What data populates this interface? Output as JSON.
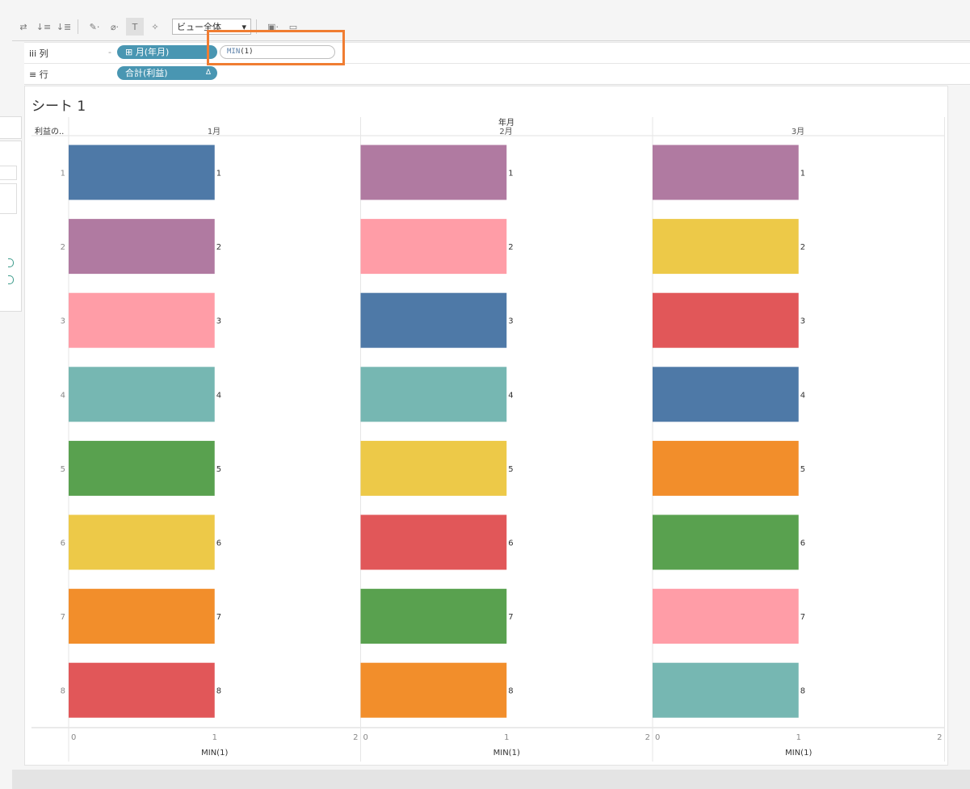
{
  "toolbar": {
    "view_dropdown": "ビュー全体",
    "icons": [
      "swap-icon",
      "sort-asc-icon",
      "sort-desc-icon",
      "highlight-pen-icon",
      "clip-icon",
      "text-label-icon",
      "pin-icon",
      "fit-icon",
      "tooltip-icon"
    ]
  },
  "shelves": {
    "columns": {
      "label": "iii 列",
      "pill": "⊞ 月(年月)",
      "pill2_func": "MIN",
      "pill2_arg": "(1)"
    },
    "rows": {
      "label": "≡ 行",
      "pill": "合計(利益)",
      "pill_delta": "Δ"
    }
  },
  "sheet": {
    "title": "シート 1"
  },
  "chart_data": {
    "type": "bar",
    "orientation": "horizontal",
    "column_header": "年月",
    "row_header": "利益の..",
    "panels": [
      "1月",
      "2月",
      "3月"
    ],
    "rows": [
      "1",
      "2",
      "3",
      "4",
      "5",
      "6",
      "7",
      "8"
    ],
    "xlabel": "MIN(1)",
    "xlim": [
      0,
      2
    ],
    "xticks": [
      "0",
      "1",
      "2"
    ],
    "values": [
      [
        1,
        1,
        1,
        1,
        1,
        1,
        1,
        1
      ],
      [
        1,
        1,
        1,
        1,
        1,
        1,
        1,
        1
      ],
      [
        1,
        1,
        1,
        1,
        1,
        1,
        1,
        1
      ]
    ],
    "data_labels": [
      [
        "1",
        "2",
        "3",
        "4",
        "5",
        "6",
        "7",
        "8"
      ],
      [
        "1",
        "2",
        "3",
        "4",
        "5",
        "6",
        "7",
        "8"
      ],
      [
        "1",
        "2",
        "3",
        "4",
        "5",
        "6",
        "7",
        "8"
      ]
    ],
    "colors": [
      [
        "#4e79a7",
        "#b07aa1",
        "#ff9da7",
        "#76b7b2",
        "#59a14f",
        "#edc948",
        "#f28e2b",
        "#e15759"
      ],
      [
        "#b07aa1",
        "#ff9da7",
        "#4e79a7",
        "#76b7b2",
        "#edc948",
        "#e15759",
        "#59a14f",
        "#f28e2b"
      ],
      [
        "#b07aa1",
        "#edc948",
        "#e15759",
        "#4e79a7",
        "#f28e2b",
        "#59a14f",
        "#ff9da7",
        "#76b7b2"
      ]
    ],
    "grid": false,
    "legend": "none"
  }
}
